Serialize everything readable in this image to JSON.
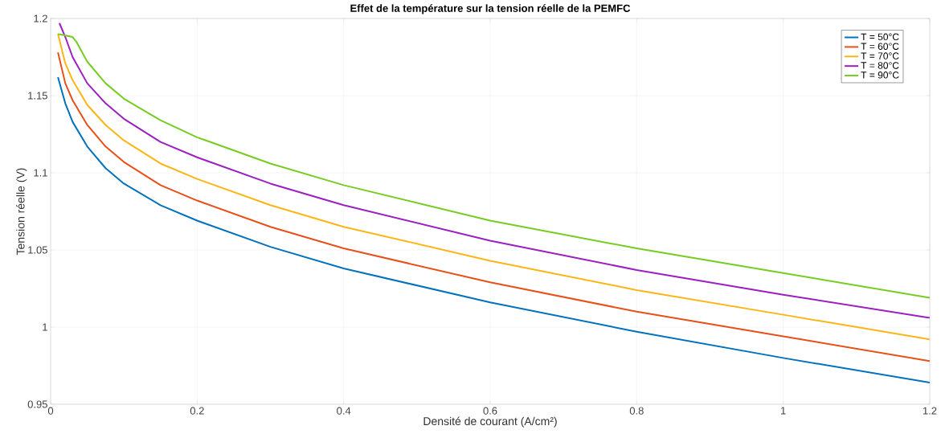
{
  "chart_data": {
    "type": "line",
    "title": "Effet de la température sur la tension réelle de la PEMFC",
    "xlabel": "Densité de courant (A/cm²)",
    "ylabel": "Tension réelle (V)",
    "xlim": [
      0,
      1.2
    ],
    "ylim": [
      0.95,
      1.2
    ],
    "xticks": [
      0,
      0.2,
      0.4,
      0.6,
      0.8,
      1,
      1.2
    ],
    "yticks": [
      0.95,
      1,
      1.05,
      1.1,
      1.15,
      1.2
    ],
    "grid": true,
    "legend": "top right",
    "marker": "none",
    "line_style": "solid",
    "series": [
      {
        "name": "T = 50°C",
        "color": "#0072bd",
        "x": [
          0.01,
          0.02,
          0.03,
          0.05,
          0.075,
          0.1,
          0.15,
          0.2,
          0.3,
          0.4,
          0.6,
          0.8,
          1.0,
          1.2
        ],
        "values": [
          1.162,
          1.145,
          1.133,
          1.117,
          1.103,
          1.093,
          1.079,
          1.069,
          1.052,
          1.038,
          1.016,
          0.997,
          0.98,
          0.964
        ]
      },
      {
        "name": "T = 60°C",
        "color": "#e8501a",
        "x": [
          0.01,
          0.02,
          0.03,
          0.05,
          0.075,
          0.1,
          0.15,
          0.2,
          0.3,
          0.4,
          0.6,
          0.8,
          1.0,
          1.2
        ],
        "values": [
          1.178,
          1.158,
          1.147,
          1.131,
          1.117,
          1.107,
          1.092,
          1.082,
          1.065,
          1.051,
          1.029,
          1.01,
          0.994,
          0.978
        ]
      },
      {
        "name": "T = 70°C",
        "color": "#fdb515",
        "x": [
          0.01,
          0.02,
          0.03,
          0.05,
          0.075,
          0.1,
          0.15,
          0.2,
          0.3,
          0.4,
          0.6,
          0.8,
          1.0,
          1.2
        ],
        "values": [
          1.19,
          1.171,
          1.16,
          1.144,
          1.131,
          1.121,
          1.106,
          1.096,
          1.079,
          1.065,
          1.043,
          1.024,
          1.008,
          0.992
        ]
      },
      {
        "name": "T = 80°C",
        "color": "#9b1fc1",
        "x": [
          0.012,
          0.02,
          0.03,
          0.05,
          0.075,
          0.1,
          0.15,
          0.2,
          0.3,
          0.4,
          0.6,
          0.8,
          1.0,
          1.2
        ],
        "values": [
          1.197,
          1.188,
          1.175,
          1.158,
          1.145,
          1.135,
          1.12,
          1.11,
          1.093,
          1.079,
          1.056,
          1.037,
          1.021,
          1.006
        ]
      },
      {
        "name": "T = 90°C",
        "color": "#77cc22",
        "x": [
          0.01,
          0.03,
          0.035,
          0.05,
          0.075,
          0.1,
          0.15,
          0.2,
          0.3,
          0.4,
          0.6,
          0.8,
          1.0,
          1.2
        ],
        "values": [
          1.19,
          1.188,
          1.185,
          1.172,
          1.158,
          1.148,
          1.134,
          1.123,
          1.106,
          1.092,
          1.069,
          1.051,
          1.035,
          1.019
        ]
      }
    ]
  }
}
